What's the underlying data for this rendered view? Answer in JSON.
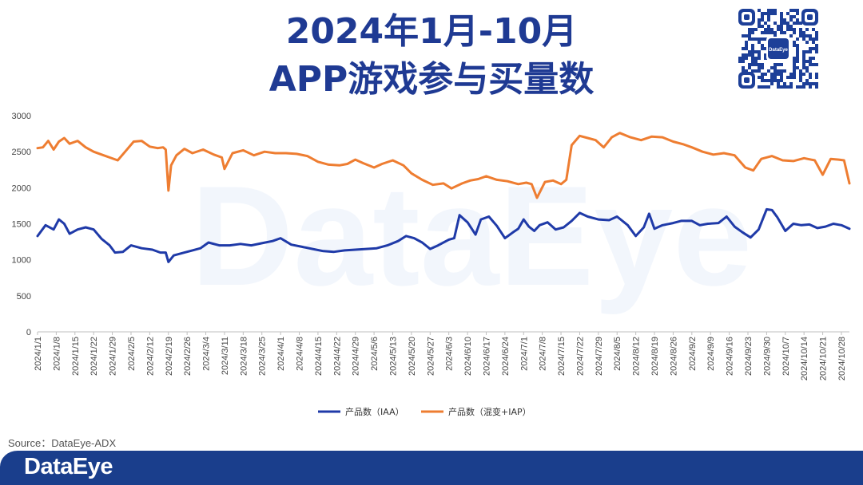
{
  "header": {
    "title_line1": "2024年1月-10月",
    "title_line2": "APP游戏参与买量数"
  },
  "qr": {
    "badge_text": "DataEye"
  },
  "watermark": "DataEye",
  "source": "Source：DataEye-ADX",
  "footer": {
    "logo": "DataEye",
    "color": "#1a3e8c"
  },
  "chart_data": {
    "type": "line",
    "ylim": [
      0,
      3000
    ],
    "yticks": [
      0,
      500,
      1000,
      1500,
      2000,
      2500,
      3000
    ],
    "date_start": "2024/1/1",
    "date_end": "2024/10/31",
    "tick_labels": [
      "2024/1/1",
      "2024/1/8",
      "2024/1/15",
      "2024/1/22",
      "2024/1/29",
      "2024/2/5",
      "2024/2/12",
      "2024/2/19",
      "2024/2/26",
      "2024/3/4",
      "2024/3/11",
      "2024/3/18",
      "2024/3/25",
      "2024/4/1",
      "2024/4/8",
      "2024/4/15",
      "2024/4/22",
      "2024/4/29",
      "2024/5/6",
      "2024/5/13",
      "2024/5/20",
      "2024/5/27",
      "2024/6/3",
      "2024/6/10",
      "2024/6/17",
      "2024/6/24",
      "2024/7/1",
      "2024/7/8",
      "2024/7/15",
      "2024/7/22",
      "2024/7/29",
      "2024/8/5",
      "2024/8/12",
      "2024/8/19",
      "2024/8/26",
      "2024/9/2",
      "2024/9/9",
      "2024/9/16",
      "2024/9/23",
      "2024/9/30",
      "2024/10/7",
      "2024/10/14",
      "2024/10/21",
      "2024/10/28"
    ],
    "legend_position": "bottom-center",
    "grid": false,
    "series": [
      {
        "name": "产品数（IAA）",
        "color": "#1f3aa8",
        "points": [
          [
            "2024/1/1",
            1330
          ],
          [
            "2024/1/4",
            1480
          ],
          [
            "2024/1/7",
            1420
          ],
          [
            "2024/1/9",
            1560
          ],
          [
            "2024/1/11",
            1500
          ],
          [
            "2024/1/13",
            1360
          ],
          [
            "2024/1/16",
            1420
          ],
          [
            "2024/1/19",
            1450
          ],
          [
            "2024/1/22",
            1420
          ],
          [
            "2024/1/25",
            1290
          ],
          [
            "2024/1/28",
            1200
          ],
          [
            "2024/1/30",
            1100
          ],
          [
            "2024/2/2",
            1110
          ],
          [
            "2024/2/5",
            1200
          ],
          [
            "2024/2/9",
            1160
          ],
          [
            "2024/2/13",
            1140
          ],
          [
            "2024/2/16",
            1100
          ],
          [
            "2024/2/18",
            1100
          ],
          [
            "2024/2/19",
            970
          ],
          [
            "2024/2/21",
            1060
          ],
          [
            "2024/2/25",
            1100
          ],
          [
            "2024/2/28",
            1130
          ],
          [
            "2024/3/2",
            1160
          ],
          [
            "2024/3/5",
            1240
          ],
          [
            "2024/3/9",
            1200
          ],
          [
            "2024/3/13",
            1200
          ],
          [
            "2024/3/17",
            1220
          ],
          [
            "2024/3/21",
            1200
          ],
          [
            "2024/3/25",
            1230
          ],
          [
            "2024/3/29",
            1260
          ],
          [
            "2024/4/1",
            1300
          ],
          [
            "2024/4/5",
            1210
          ],
          [
            "2024/4/9",
            1180
          ],
          [
            "2024/4/13",
            1150
          ],
          [
            "2024/4/17",
            1120
          ],
          [
            "2024/4/21",
            1110
          ],
          [
            "2024/4/25",
            1130
          ],
          [
            "2024/4/29",
            1140
          ],
          [
            "2024/5/3",
            1150
          ],
          [
            "2024/5/7",
            1160
          ],
          [
            "2024/5/11",
            1200
          ],
          [
            "2024/5/15",
            1260
          ],
          [
            "2024/5/18",
            1330
          ],
          [
            "2024/5/21",
            1300
          ],
          [
            "2024/5/24",
            1240
          ],
          [
            "2024/5/27",
            1150
          ],
          [
            "2024/5/30",
            1200
          ],
          [
            "2024/6/3",
            1280
          ],
          [
            "2024/6/5",
            1300
          ],
          [
            "2024/6/7",
            1620
          ],
          [
            "2024/6/10",
            1520
          ],
          [
            "2024/6/13",
            1350
          ],
          [
            "2024/6/15",
            1560
          ],
          [
            "2024/6/18",
            1600
          ],
          [
            "2024/6/21",
            1470
          ],
          [
            "2024/6/24",
            1300
          ],
          [
            "2024/6/27",
            1380
          ],
          [
            "2024/6/29",
            1430
          ],
          [
            "2024/7/1",
            1560
          ],
          [
            "2024/7/3",
            1460
          ],
          [
            "2024/7/5",
            1400
          ],
          [
            "2024/7/7",
            1480
          ],
          [
            "2024/7/10",
            1520
          ],
          [
            "2024/7/13",
            1420
          ],
          [
            "2024/7/16",
            1450
          ],
          [
            "2024/7/19",
            1540
          ],
          [
            "2024/7/22",
            1650
          ],
          [
            "2024/7/25",
            1600
          ],
          [
            "2024/7/29",
            1560
          ],
          [
            "2024/8/2",
            1550
          ],
          [
            "2024/8/5",
            1600
          ],
          [
            "2024/8/9",
            1480
          ],
          [
            "2024/8/12",
            1330
          ],
          [
            "2024/8/15",
            1450
          ],
          [
            "2024/8/17",
            1640
          ],
          [
            "2024/8/19",
            1430
          ],
          [
            "2024/8/22",
            1480
          ],
          [
            "2024/8/26",
            1510
          ],
          [
            "2024/8/29",
            1540
          ],
          [
            "2024/9/2",
            1540
          ],
          [
            "2024/9/5",
            1480
          ],
          [
            "2024/9/8",
            1500
          ],
          [
            "2024/9/12",
            1510
          ],
          [
            "2024/9/15",
            1600
          ],
          [
            "2024/9/18",
            1460
          ],
          [
            "2024/9/21",
            1380
          ],
          [
            "2024/9/24",
            1310
          ],
          [
            "2024/9/27",
            1420
          ],
          [
            "2024/9/30",
            1700
          ],
          [
            "2024/10/2",
            1690
          ],
          [
            "2024/10/4",
            1590
          ],
          [
            "2024/10/7",
            1400
          ],
          [
            "2024/10/10",
            1500
          ],
          [
            "2024/10/13",
            1480
          ],
          [
            "2024/10/16",
            1490
          ],
          [
            "2024/10/19",
            1440
          ],
          [
            "2024/10/22",
            1460
          ],
          [
            "2024/10/25",
            1500
          ],
          [
            "2024/10/28",
            1480
          ],
          [
            "2024/10/31",
            1430
          ]
        ]
      },
      {
        "name": "产品数（混变+IAP）",
        "color": "#ee7d31",
        "points": [
          [
            "2024/1/1",
            2550
          ],
          [
            "2024/1/3",
            2560
          ],
          [
            "2024/1/5",
            2650
          ],
          [
            "2024/1/7",
            2530
          ],
          [
            "2024/1/9",
            2640
          ],
          [
            "2024/1/11",
            2690
          ],
          [
            "2024/1/13",
            2610
          ],
          [
            "2024/1/16",
            2650
          ],
          [
            "2024/1/19",
            2560
          ],
          [
            "2024/1/22",
            2500
          ],
          [
            "2024/1/25",
            2460
          ],
          [
            "2024/1/28",
            2420
          ],
          [
            "2024/1/31",
            2380
          ],
          [
            "2024/2/3",
            2510
          ],
          [
            "2024/2/6",
            2640
          ],
          [
            "2024/2/9",
            2650
          ],
          [
            "2024/2/12",
            2570
          ],
          [
            "2024/2/15",
            2550
          ],
          [
            "2024/2/17",
            2560
          ],
          [
            "2024/2/18",
            2530
          ],
          [
            "2024/2/19",
            1960
          ],
          [
            "2024/2/20",
            2310
          ],
          [
            "2024/2/22",
            2450
          ],
          [
            "2024/2/25",
            2540
          ],
          [
            "2024/2/28",
            2480
          ],
          [
            "2024/3/3",
            2530
          ],
          [
            "2024/3/7",
            2460
          ],
          [
            "2024/3/10",
            2420
          ],
          [
            "2024/3/11",
            2260
          ],
          [
            "2024/3/14",
            2480
          ],
          [
            "2024/3/18",
            2520
          ],
          [
            "2024/3/22",
            2450
          ],
          [
            "2024/3/26",
            2500
          ],
          [
            "2024/3/30",
            2480
          ],
          [
            "2024/4/3",
            2480
          ],
          [
            "2024/4/7",
            2470
          ],
          [
            "2024/4/11",
            2440
          ],
          [
            "2024/4/15",
            2360
          ],
          [
            "2024/4/19",
            2320
          ],
          [
            "2024/4/23",
            2310
          ],
          [
            "2024/4/26",
            2330
          ],
          [
            "2024/4/29",
            2390
          ],
          [
            "2024/5/2",
            2340
          ],
          [
            "2024/5/6",
            2280
          ],
          [
            "2024/5/9",
            2330
          ],
          [
            "2024/5/13",
            2380
          ],
          [
            "2024/5/17",
            2310
          ],
          [
            "2024/5/20",
            2200
          ],
          [
            "2024/5/24",
            2110
          ],
          [
            "2024/5/28",
            2040
          ],
          [
            "2024/6/1",
            2060
          ],
          [
            "2024/6/4",
            1990
          ],
          [
            "2024/6/8",
            2060
          ],
          [
            "2024/6/11",
            2100
          ],
          [
            "2024/6/14",
            2120
          ],
          [
            "2024/6/17",
            2160
          ],
          [
            "2024/6/21",
            2110
          ],
          [
            "2024/6/25",
            2090
          ],
          [
            "2024/6/29",
            2050
          ],
          [
            "2024/7/2",
            2070
          ],
          [
            "2024/7/4",
            2050
          ],
          [
            "2024/7/6",
            1860
          ],
          [
            "2024/7/9",
            2080
          ],
          [
            "2024/7/12",
            2100
          ],
          [
            "2024/7/15",
            2050
          ],
          [
            "2024/7/17",
            2110
          ],
          [
            "2024/7/19",
            2590
          ],
          [
            "2024/7/22",
            2720
          ],
          [
            "2024/7/25",
            2690
          ],
          [
            "2024/7/28",
            2660
          ],
          [
            "2024/7/31",
            2560
          ],
          [
            "2024/8/3",
            2700
          ],
          [
            "2024/8/6",
            2760
          ],
          [
            "2024/8/10",
            2700
          ],
          [
            "2024/8/14",
            2660
          ],
          [
            "2024/8/18",
            2710
          ],
          [
            "2024/8/22",
            2700
          ],
          [
            "2024/8/26",
            2640
          ],
          [
            "2024/8/30",
            2600
          ],
          [
            "2024/9/2",
            2560
          ],
          [
            "2024/9/6",
            2500
          ],
          [
            "2024/9/10",
            2460
          ],
          [
            "2024/9/14",
            2480
          ],
          [
            "2024/9/18",
            2450
          ],
          [
            "2024/9/22",
            2280
          ],
          [
            "2024/9/25",
            2240
          ],
          [
            "2024/9/28",
            2400
          ],
          [
            "2024/10/2",
            2440
          ],
          [
            "2024/10/6",
            2380
          ],
          [
            "2024/10/10",
            2370
          ],
          [
            "2024/10/14",
            2410
          ],
          [
            "2024/10/18",
            2380
          ],
          [
            "2024/10/21",
            2180
          ],
          [
            "2024/10/24",
            2400
          ],
          [
            "2024/10/27",
            2390
          ],
          [
            "2024/10/29",
            2380
          ],
          [
            "2024/10/31",
            2060
          ]
        ]
      }
    ]
  }
}
